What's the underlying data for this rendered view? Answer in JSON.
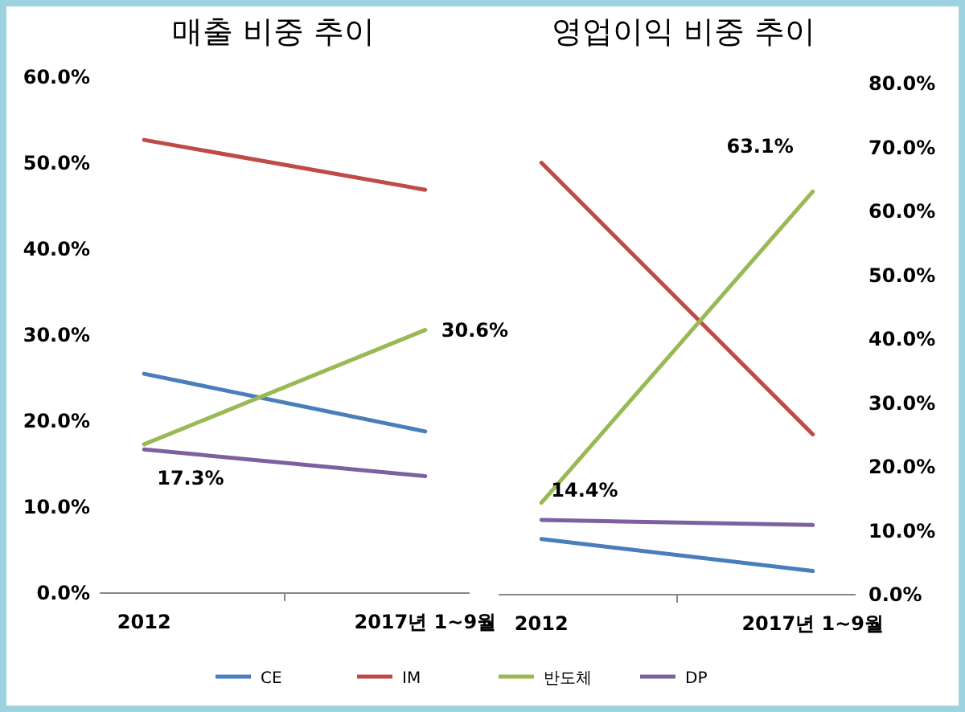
{
  "chart_data": [
    {
      "type": "line",
      "title": "매출 비중 추이",
      "categories": [
        "2012",
        "2017년 1~9월"
      ],
      "series": [
        {
          "name": "CE",
          "color": "#4a7ebb",
          "values": [
            25.5,
            18.8
          ]
        },
        {
          "name": "IM",
          "color": "#be4b48",
          "values": [
            52.7,
            46.9
          ]
        },
        {
          "name": "반도체",
          "color": "#98b954",
          "values": [
            17.3,
            30.6
          ],
          "value_labels": [
            "17.3%",
            "30.6%"
          ]
        },
        {
          "name": "DP",
          "color": "#7d60a0",
          "values": [
            16.7,
            13.6
          ]
        }
      ],
      "ylim": [
        0,
        60
      ],
      "yticks": [
        {
          "value": 0,
          "label": "0.0%"
        },
        {
          "value": 10,
          "label": "10.0%"
        },
        {
          "value": 20,
          "label": "20.0%"
        },
        {
          "value": 30,
          "label": "30.0%"
        },
        {
          "value": 40,
          "label": "40.0%"
        },
        {
          "value": 50,
          "label": "50.0%"
        },
        {
          "value": 60,
          "label": "60.0%"
        }
      ],
      "grid": false,
      "legend": "bottom"
    },
    {
      "type": "line",
      "title": "영업이익 비중 추이",
      "categories": [
        "2012",
        "2017년 1~9월"
      ],
      "series": [
        {
          "name": "CE",
          "color": "#4a7ebb",
          "axis": "y2",
          "values": [
            8.7,
            3.7
          ]
        },
        {
          "name": "IM",
          "color": "#be4b48",
          "axis": "y2",
          "values": [
            67.6,
            25.1
          ]
        },
        {
          "name": "반도체",
          "color": "#98b954",
          "axis": "y2",
          "values": [
            14.4,
            63.1
          ],
          "value_labels": [
            "14.4%",
            "63.1%"
          ]
        },
        {
          "name": "DP",
          "color": "#7d60a0",
          "axis": "y2",
          "values": [
            11.7,
            10.9
          ]
        }
      ],
      "y2lim": [
        0,
        80
      ],
      "y2ticks": [
        {
          "value": 0,
          "label": "0.0%"
        },
        {
          "value": 10,
          "label": "10.0%"
        },
        {
          "value": 20,
          "label": "20.0%"
        },
        {
          "value": 30,
          "label": "30.0%"
        },
        {
          "value": 40,
          "label": "40.0%"
        },
        {
          "value": 50,
          "label": "50.0%"
        },
        {
          "value": 60,
          "label": "60.0%"
        },
        {
          "value": 70,
          "label": "70.0%"
        },
        {
          "value": 80,
          "label": "80.0%"
        }
      ],
      "grid": false,
      "legend": "bottom"
    }
  ]
}
